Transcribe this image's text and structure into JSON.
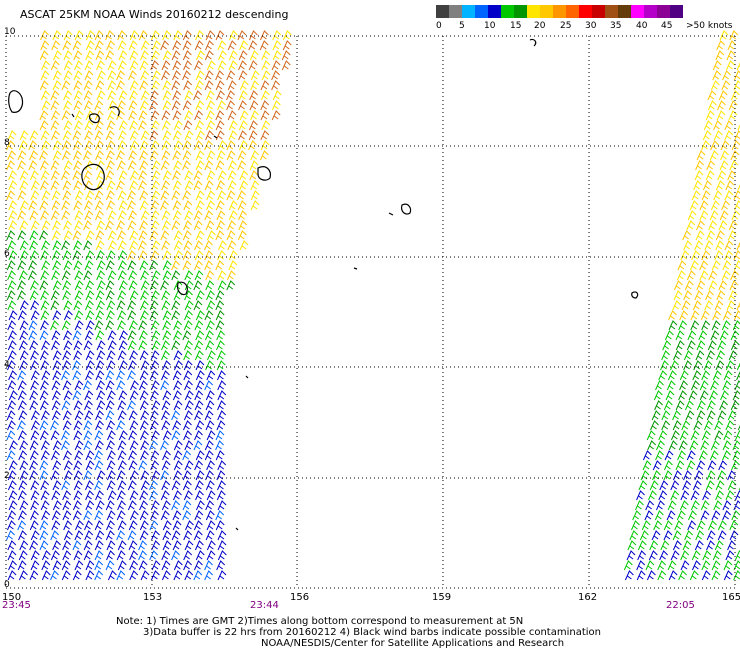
{
  "title": "ASCAT 25KM NOAA Winds 20160212 descending",
  "colorbar": {
    "colors": [
      "#404040",
      "#808080",
      "#00b4ff",
      "#0064ff",
      "#0000c8",
      "#00c800",
      "#009600",
      "#ffe600",
      "#ffc800",
      "#ff9600",
      "#ff6400",
      "#ff0000",
      "#c80000",
      "#a05014",
      "#643c0a",
      "#ff00ff",
      "#b400c8",
      "#8c0096",
      "#500082"
    ],
    "labels": [
      "0",
      "5",
      "10",
      "15",
      "20",
      "25",
      "30",
      "35",
      "40",
      "45",
      ">50 knots"
    ]
  },
  "map": {
    "lon_labels": [
      "150",
      "153",
      "156",
      "159",
      "162",
      "165"
    ],
    "lat_labels": [
      "10",
      "8",
      "6",
      "4",
      "2",
      "0"
    ],
    "time_labels": [
      "23:45",
      "23:44",
      "22:05"
    ],
    "lon_range": [
      150,
      165
    ],
    "lat_range": [
      0,
      10
    ],
    "grid": "dotted"
  },
  "notes": [
    "Note: 1) Times are GMT 2)Times along bottom correspond to measurement at 5N",
    "3)Data buffer is 22 hrs from 20160212 4) Black wind barbs indicate possible contamination",
    "NOAA/NESDIS/Center for Satellite Applications and Research"
  ],
  "wind_colors": {
    "light": "#ffe600",
    "orange": "#ffc800",
    "brown": "#d2691e",
    "green": "#00c800",
    "darkgreen": "#009600",
    "blue": "#0000c8",
    "medblue": "#0064ff"
  }
}
